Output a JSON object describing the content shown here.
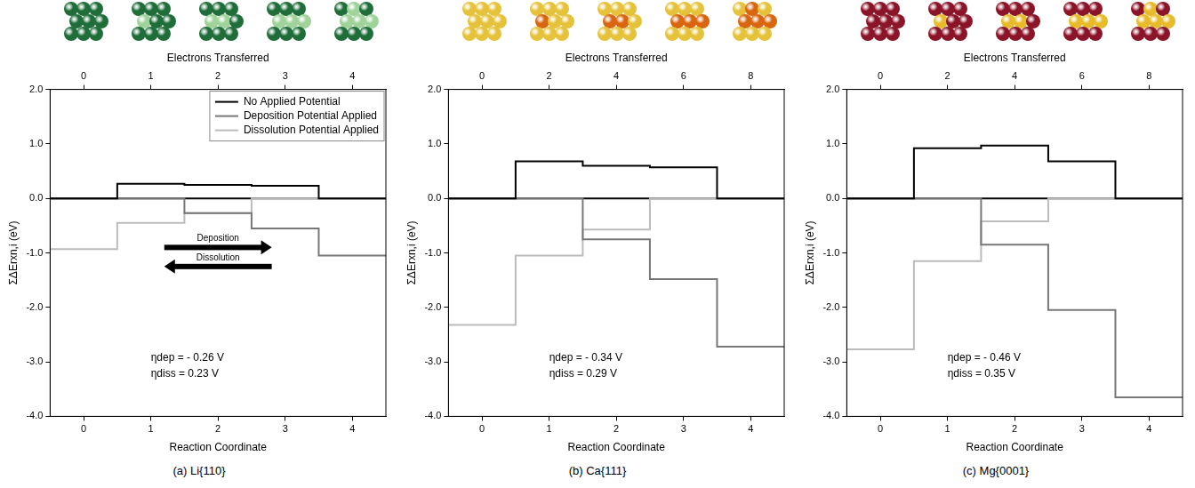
{
  "chart_data": [
    {
      "type": "line",
      "title": "(a) Li{110}",
      "x_label": "Reaction Coordinate",
      "x2_label": "Electrons Transferred",
      "y_label": "ΣΔErxn,i (eV)",
      "x": [
        0,
        1,
        2,
        3,
        4
      ],
      "series": [
        {
          "name": "No Applied Potential",
          "color": "#000000",
          "values": [
            0,
            0.27,
            0.25,
            0.23,
            0
          ]
        },
        {
          "name": "Deposition Potential Applied",
          "color": "#777777",
          "values": [
            0,
            0,
            -0.27,
            -0.55,
            -1.05
          ]
        },
        {
          "name": "Dissolution Potential Applied",
          "color": "#bbbbbb",
          "values": [
            -0.93,
            -0.45,
            -0.27,
            0,
            0
          ]
        }
      ],
      "xlim": [
        -0.5,
        4.5
      ],
      "xticks": [
        0,
        1,
        2,
        3,
        4
      ],
      "x2lim": [
        -0.5,
        4.5
      ],
      "x2ticks": [
        0,
        1,
        2,
        3,
        4
      ],
      "ylim": [
        -4,
        2
      ],
      "yticks": [
        {
          "value": -4,
          "label": "-4.0"
        },
        {
          "value": -3,
          "label": "-3.0"
        },
        {
          "value": -2,
          "label": "-2.0"
        },
        {
          "value": -1,
          "label": "-1.0"
        },
        {
          "value": 0,
          "label": "0.0"
        },
        {
          "value": 1,
          "label": "1.0"
        },
        {
          "value": 2,
          "label": "2.0"
        }
      ],
      "grid": false,
      "legend": "upper right",
      "annotations": [
        "ηdep = - 0.26 V",
        "ηdiss = 0.23 V"
      ],
      "arrow_labels": [
        "Deposition",
        "Dissolution"
      ]
    },
    {
      "type": "line",
      "title": "(b) Ca{111}",
      "x_label": "Reaction Coordinate",
      "x2_label": "Electrons Transferred",
      "y_label": "ΣΔErxn,i (eV)",
      "x": [
        0,
        1,
        2,
        3,
        4
      ],
      "series": [
        {
          "color": "#000000",
          "values": [
            0,
            0.68,
            0.6,
            0.57,
            0
          ]
        },
        {
          "color": "#777777",
          "values": [
            0,
            0,
            -0.75,
            -1.48,
            -2.72
          ]
        },
        {
          "color": "#bbbbbb",
          "values": [
            -2.32,
            -1.05,
            -0.57,
            0,
            0
          ]
        }
      ],
      "xlim": [
        -0.5,
        4.5
      ],
      "xticks": [
        0,
        1,
        2,
        3,
        4
      ],
      "x2lim": [
        -1,
        9
      ],
      "x2ticks": [
        0,
        2,
        4,
        6,
        8
      ],
      "ylim": [
        -4,
        2
      ],
      "yticks": [
        {
          "value": -4,
          "label": "-4.0"
        },
        {
          "value": -3,
          "label": "-3.0"
        },
        {
          "value": -2,
          "label": "-2.0"
        },
        {
          "value": -1,
          "label": "-1.0"
        },
        {
          "value": 0,
          "label": "0.0"
        },
        {
          "value": 1,
          "label": "1.0"
        },
        {
          "value": 2,
          "label": "2.0"
        }
      ],
      "grid": false,
      "annotations": [
        "ηdep = - 0.34 V",
        "ηdiss = 0.29 V"
      ]
    },
    {
      "type": "line",
      "title": "(c) Mg{0001}",
      "x_label": "Reaction Coordinate",
      "x2_label": "Electrons Transferred",
      "y_label": "ΣΔErxn,i (eV)",
      "x": [
        0,
        1,
        2,
        3,
        4
      ],
      "series": [
        {
          "color": "#000000",
          "values": [
            0,
            0.92,
            0.97,
            0.68,
            0
          ]
        },
        {
          "color": "#777777",
          "values": [
            0,
            0,
            -0.85,
            -2.05,
            -3.65
          ]
        },
        {
          "color": "#bbbbbb",
          "values": [
            -2.77,
            -1.15,
            -0.42,
            0,
            0
          ]
        }
      ],
      "xlim": [
        -0.5,
        4.5
      ],
      "xticks": [
        0,
        1,
        2,
        3,
        4
      ],
      "x2lim": [
        -1,
        9
      ],
      "x2ticks": [
        0,
        2,
        4,
        6,
        8
      ],
      "ylim": [
        -4,
        2
      ],
      "yticks": [
        {
          "value": -4,
          "label": "-4.0"
        },
        {
          "value": -3,
          "label": "-3.0"
        },
        {
          "value": -2,
          "label": "-2.0"
        },
        {
          "value": -1,
          "label": "-1.0"
        },
        {
          "value": 0,
          "label": "0.0"
        },
        {
          "value": 1,
          "label": "1.0"
        },
        {
          "value": 2,
          "label": "2.0"
        }
      ],
      "grid": false,
      "annotations": [
        "ηdep = - 0.46 V",
        "ηdiss = 0.35 V"
      ]
    }
  ]
}
